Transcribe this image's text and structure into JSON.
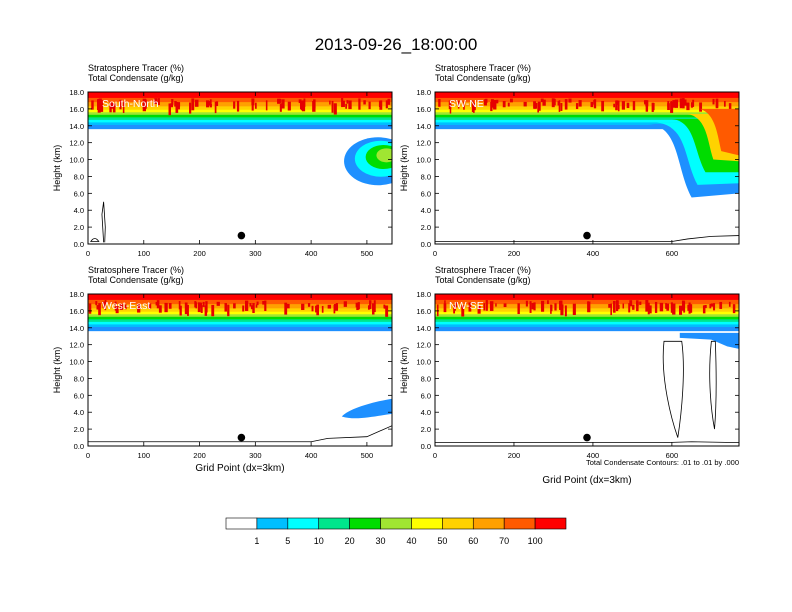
{
  "chart_data": {
    "type": "heatmap",
    "title": "2013-09-26_18:00:00",
    "field_labels": [
      "Stratosphere Tracer   (%)",
      "Total Condensate   (g/kg)"
    ],
    "contour_note": "Total Condensate Contours: .01 to .01 by .000",
    "ylabel": "Height (km)",
    "xlabel": "Grid Point (dx=3km)",
    "y_ticks": [
      "0.0",
      "2.0",
      "4.0",
      "6.0",
      "8.0",
      "10.0",
      "12.0",
      "14.0",
      "16.0",
      "18.0"
    ],
    "ylim": [
      0,
      18
    ],
    "colorbar": {
      "labels": [
        "1",
        "5",
        "10",
        "20",
        "30",
        "40",
        "50",
        "60",
        "70",
        "100"
      ],
      "colors": [
        "#ffffff",
        "#1e90ff",
        "#00bfff",
        "#00ffff",
        "#00e58c",
        "#00dc00",
        "#a0e632",
        "#ffff00",
        "#ffd200",
        "#ffa000",
        "#ff5a00",
        "#ff0000"
      ]
    },
    "panels": [
      {
        "label": "South-North",
        "xlim": [
          0,
          545
        ],
        "x_ticks": [
          "0",
          "100",
          "200",
          "300",
          "400",
          "500"
        ],
        "tick_values": [
          0,
          100,
          200,
          300,
          400,
          500
        ],
        "marker_x": 275,
        "show_xlabel": false
      },
      {
        "label": "SW-NE",
        "xlim": [
          0,
          770
        ],
        "x_ticks": [
          "0",
          "200",
          "400",
          "600"
        ],
        "tick_values": [
          0,
          200,
          400,
          600
        ],
        "marker_x": 385,
        "show_xlabel": false
      },
      {
        "label": "West-East",
        "xlim": [
          0,
          545
        ],
        "x_ticks": [
          "0",
          "100",
          "200",
          "300",
          "400",
          "500"
        ],
        "tick_values": [
          0,
          100,
          200,
          300,
          400,
          500
        ],
        "marker_x": 275,
        "show_xlabel": true
      },
      {
        "label": "NW-SE",
        "xlim": [
          0,
          770
        ],
        "x_ticks": [
          "0",
          "200",
          "400",
          "600"
        ],
        "tick_values": [
          0,
          200,
          400,
          600
        ],
        "marker_x": 385,
        "show_xlabel": true
      }
    ]
  }
}
